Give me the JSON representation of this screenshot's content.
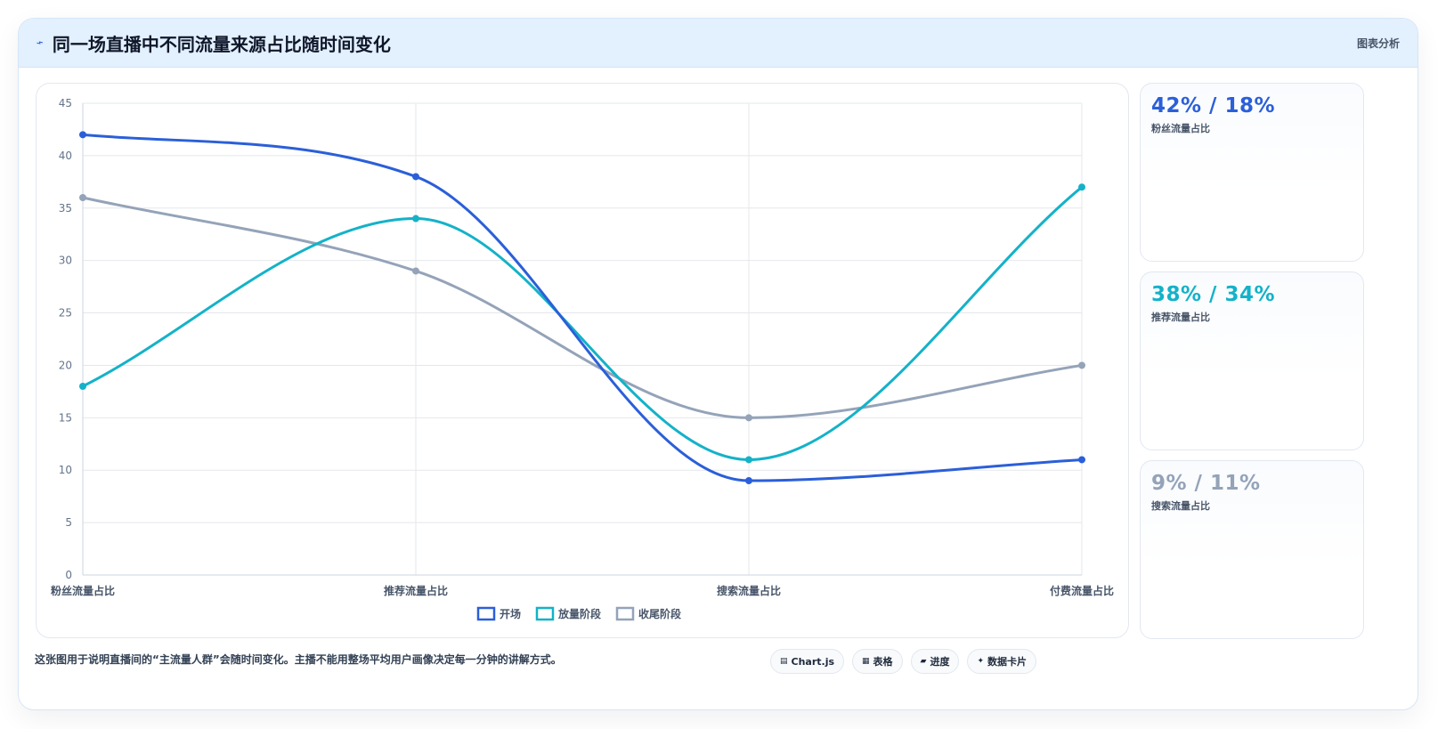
{
  "header": {
    "icon": "lightning-icon",
    "title": "同一场直播中不同流量来源占比随时间变化",
    "action_label": "图表分析"
  },
  "chart_data": {
    "type": "line",
    "categories": [
      "粉丝流量占比",
      "推荐流量占比",
      "搜索流量占比",
      "付费流量占比"
    ],
    "ylim": [
      0,
      45
    ],
    "yticks": [
      0,
      5,
      10,
      15,
      20,
      25,
      30,
      35,
      40,
      45
    ],
    "grid": true,
    "legend_position": "bottom",
    "series": [
      {
        "name": "开场",
        "values": [
          42,
          38,
          9,
          11
        ],
        "color": "#2b5fd9"
      },
      {
        "name": "放量阶段",
        "values": [
          18,
          34,
          11,
          37
        ],
        "color": "#14b2c8"
      },
      {
        "name": "收尾阶段",
        "values": [
          36,
          29,
          15,
          20
        ],
        "color": "#94a3b8"
      }
    ]
  },
  "stats": [
    {
      "value": "42% / 18%",
      "label": "粉丝流量占比",
      "color": "#2b5fd9"
    },
    {
      "value": "38% / 34%",
      "label": "推荐流量占比",
      "color": "#14b2c8"
    },
    {
      "value": "9% / 11%",
      "label": "搜索流量占比",
      "color": "#94a3b8"
    }
  ],
  "footer": {
    "note": "这张图用于说明直播间的“主流量人群”会随时间变化。主播不能用整场平均用户画像决定每一分钟的讲解方式。",
    "chips": [
      {
        "icon": "chart-icon",
        "label": "Chart.js"
      },
      {
        "icon": "table-icon",
        "label": "表格"
      },
      {
        "icon": "progress-icon",
        "label": "进度"
      },
      {
        "icon": "sparkle-icon",
        "label": "数据卡片"
      }
    ]
  }
}
